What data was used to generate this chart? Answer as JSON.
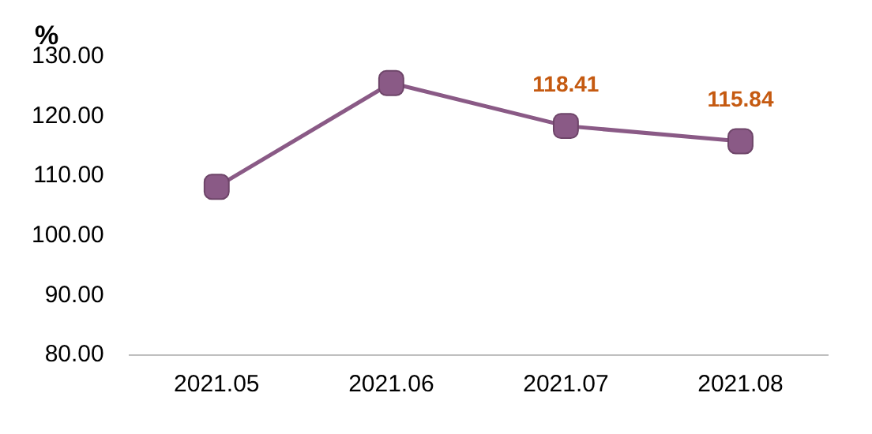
{
  "chart_data": {
    "type": "line",
    "ylabel": "%",
    "categories": [
      "2021.05",
      "2021.06",
      "2021.07",
      "2021.08"
    ],
    "series": [
      {
        "color": "#8a5a86",
        "values": [
          108.2,
          125.6,
          118.41,
          115.84
        ],
        "value_labels": [
          null,
          null,
          "118.41",
          "115.84"
        ]
      }
    ],
    "ylim": [
      80,
      130
    ],
    "yticks": [
      {
        "value": 80,
        "label": "80.00"
      },
      {
        "value": 90,
        "label": "90.00"
      },
      {
        "value": 100,
        "label": "100.00"
      },
      {
        "value": 110,
        "label": "110.00"
      },
      {
        "value": 120,
        "label": "120.00"
      },
      {
        "value": 130,
        "label": "130.00"
      }
    ],
    "grid": false,
    "legend": false,
    "marker": "square",
    "line_style": "solid"
  }
}
